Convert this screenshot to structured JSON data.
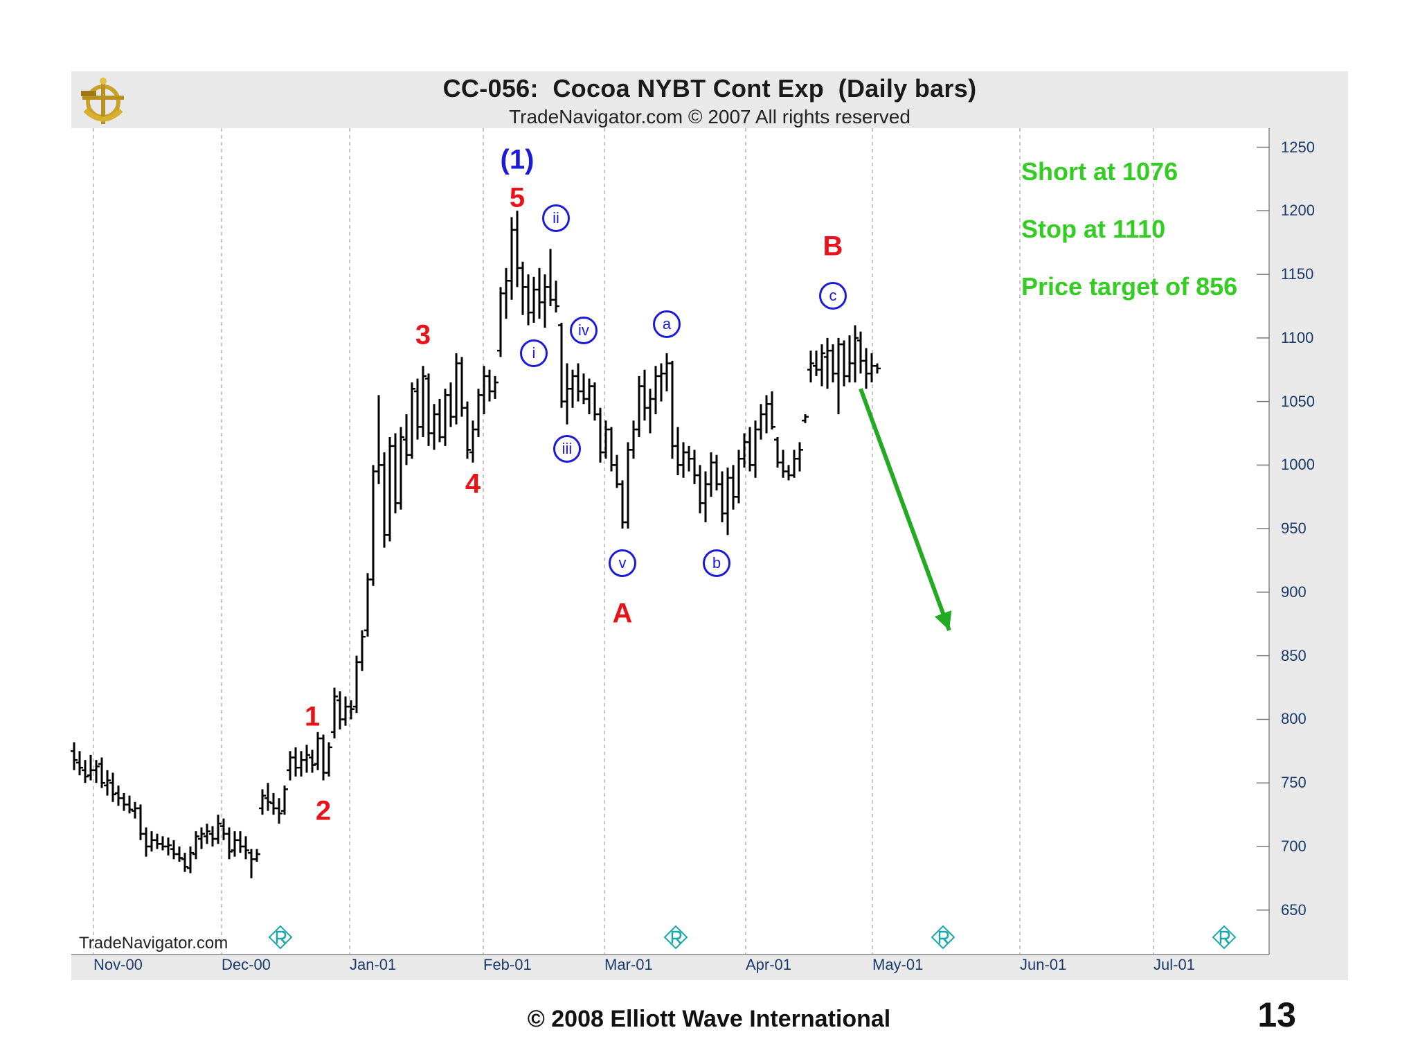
{
  "chart_title": "CC-056:  Cocoa NYBT Cont Exp  (Daily bars)",
  "chart_subtitle": "TradeNavigator.com © 2007 All rights reserved",
  "watermark_text": "TradeNavigator.com",
  "footer_copyright": "© 2008 Elliott Wave International",
  "page_number": "13",
  "trade_notes": [
    "Short at 1076",
    "Stop at 1110",
    "Price target of 856"
  ],
  "colors": {
    "panel_bg": "#e9e9e9",
    "plot_bg": "#ffffff",
    "bars": "#000000",
    "wave_red": "#e8131a",
    "wave_blue": "#1a1ad8",
    "notes_green": "#33cc22",
    "axis_text": "#1a3a6a"
  },
  "icons": {
    "logo": "anchor-ship-wheel-logo",
    "roll_marker": "diamond-r-rollover-icon"
  },
  "chart_data": {
    "type": "ohlc",
    "title": "CC-056:  Cocoa NYBT Cont Exp  (Daily bars)",
    "x_ticks": [
      "Nov-00",
      "Dec-00",
      "Jan-01",
      "Feb-01",
      "Mar-01",
      "Apr-01",
      "May-01",
      "Jun-01",
      "Jul-01"
    ],
    "y_ticks": [
      650,
      700,
      750,
      800,
      850,
      900,
      950,
      1000,
      1050,
      1100,
      1150,
      1200,
      1250
    ],
    "ylim": [
      615,
      1265
    ],
    "grid": "vertical dashed lines at month starts",
    "x_axis": "trading days from 2000-11-01",
    "wave_labels": [
      {
        "text": "1",
        "style": "red",
        "x": 43,
        "y": 802
      },
      {
        "text": "2",
        "style": "red",
        "x": 45,
        "y": 728
      },
      {
        "text": "3",
        "style": "red",
        "x": 63,
        "y": 1102
      },
      {
        "text": "4",
        "style": "red",
        "x": 72,
        "y": 985
      },
      {
        "text": "5",
        "style": "red",
        "x": 80,
        "y": 1210
      },
      {
        "text": "(1)",
        "style": "blue",
        "x": 80,
        "y": 1240
      },
      {
        "text": "i",
        "style": "circle",
        "x": 83,
        "y": 1088
      },
      {
        "text": "ii",
        "style": "circle",
        "x": 87,
        "y": 1194
      },
      {
        "text": "iii",
        "style": "circle",
        "x": 89,
        "y": 1013
      },
      {
        "text": "iv",
        "style": "circle",
        "x": 92,
        "y": 1106
      },
      {
        "text": "v",
        "style": "circle",
        "x": 99,
        "y": 923
      },
      {
        "text": "A",
        "style": "red",
        "x": 99,
        "y": 883
      },
      {
        "text": "a",
        "style": "circle",
        "x": 107,
        "y": 1111
      },
      {
        "text": "b",
        "style": "circle",
        "x": 116,
        "y": 923
      },
      {
        "text": "c",
        "style": "circle",
        "x": 137,
        "y": 1133
      },
      {
        "text": "B",
        "style": "red",
        "x": 137,
        "y": 1172
      }
    ],
    "arrow": {
      "from": {
        "x": 142,
        "y": 1060
      },
      "to": {
        "x": 158,
        "y": 870
      },
      "label": ""
    },
    "bars": [
      {
        "x": 0,
        "o": 775,
        "h": 782,
        "l": 760,
        "c": 768
      },
      {
        "x": 1,
        "o": 766,
        "h": 775,
        "l": 756,
        "c": 762
      },
      {
        "x": 2,
        "o": 760,
        "h": 768,
        "l": 750,
        "c": 755
      },
      {
        "x": 3,
        "o": 756,
        "h": 772,
        "l": 752,
        "c": 760
      },
      {
        "x": 4,
        "o": 760,
        "h": 768,
        "l": 750,
        "c": 763
      },
      {
        "x": 5,
        "o": 765,
        "h": 770,
        "l": 746,
        "c": 750
      },
      {
        "x": 6,
        "o": 748,
        "h": 760,
        "l": 740,
        "c": 752
      },
      {
        "x": 7,
        "o": 750,
        "h": 758,
        "l": 735,
        "c": 741
      },
      {
        "x": 8,
        "o": 742,
        "h": 748,
        "l": 732,
        "c": 738
      },
      {
        "x": 9,
        "o": 738,
        "h": 742,
        "l": 728,
        "c": 733
      },
      {
        "x": 10,
        "o": 733,
        "h": 740,
        "l": 726,
        "c": 729
      },
      {
        "x": 11,
        "o": 728,
        "h": 735,
        "l": 722,
        "c": 730
      },
      {
        "x": 12,
        "o": 730,
        "h": 733,
        "l": 705,
        "c": 710
      },
      {
        "x": 13,
        "o": 710,
        "h": 715,
        "l": 692,
        "c": 700
      },
      {
        "x": 14,
        "o": 700,
        "h": 712,
        "l": 696,
        "c": 705
      },
      {
        "x": 15,
        "o": 705,
        "h": 710,
        "l": 698,
        "c": 702
      },
      {
        "x": 16,
        "o": 702,
        "h": 708,
        "l": 697,
        "c": 700
      },
      {
        "x": 17,
        "o": 700,
        "h": 707,
        "l": 693,
        "c": 701
      },
      {
        "x": 18,
        "o": 698,
        "h": 705,
        "l": 690,
        "c": 694
      },
      {
        "x": 19,
        "o": 694,
        "h": 700,
        "l": 688,
        "c": 691
      },
      {
        "x": 20,
        "o": 690,
        "h": 695,
        "l": 680,
        "c": 684
      },
      {
        "x": 21,
        "o": 683,
        "h": 700,
        "l": 679,
        "c": 695
      },
      {
        "x": 22,
        "o": 694,
        "h": 712,
        "l": 690,
        "c": 708
      },
      {
        "x": 23,
        "o": 706,
        "h": 715,
        "l": 698,
        "c": 710
      },
      {
        "x": 24,
        "o": 708,
        "h": 718,
        "l": 702,
        "c": 712
      },
      {
        "x": 25,
        "o": 710,
        "h": 716,
        "l": 700,
        "c": 706
      },
      {
        "x": 26,
        "o": 706,
        "h": 725,
        "l": 702,
        "c": 718
      },
      {
        "x": 27,
        "o": 716,
        "h": 722,
        "l": 705,
        "c": 710
      },
      {
        "x": 28,
        "o": 710,
        "h": 715,
        "l": 690,
        "c": 696
      },
      {
        "x": 29,
        "o": 697,
        "h": 712,
        "l": 692,
        "c": 705
      },
      {
        "x": 30,
        "o": 705,
        "h": 712,
        "l": 695,
        "c": 700
      },
      {
        "x": 31,
        "o": 700,
        "h": 708,
        "l": 690,
        "c": 697
      },
      {
        "x": 32,
        "o": 695,
        "h": 698,
        "l": 675,
        "c": 690
      },
      {
        "x": 33,
        "o": 690,
        "h": 698,
        "l": 688,
        "c": 694
      },
      {
        "x": 34,
        "o": 730,
        "h": 745,
        "l": 725,
        "c": 740
      },
      {
        "x": 35,
        "o": 738,
        "h": 750,
        "l": 728,
        "c": 735
      },
      {
        "x": 36,
        "o": 734,
        "h": 742,
        "l": 725,
        "c": 730
      },
      {
        "x": 37,
        "o": 730,
        "h": 738,
        "l": 718,
        "c": 726
      },
      {
        "x": 38,
        "o": 728,
        "h": 748,
        "l": 725,
        "c": 745
      },
      {
        "x": 39,
        "o": 760,
        "h": 775,
        "l": 752,
        "c": 770
      },
      {
        "x": 40,
        "o": 770,
        "h": 778,
        "l": 755,
        "c": 762
      },
      {
        "x": 41,
        "o": 762,
        "h": 775,
        "l": 755,
        "c": 768
      },
      {
        "x": 42,
        "o": 768,
        "h": 780,
        "l": 758,
        "c": 772
      },
      {
        "x": 43,
        "o": 770,
        "h": 776,
        "l": 758,
        "c": 764
      },
      {
        "x": 44,
        "o": 765,
        "h": 790,
        "l": 760,
        "c": 785
      },
      {
        "x": 45,
        "o": 785,
        "h": 788,
        "l": 752,
        "c": 758
      },
      {
        "x": 46,
        "o": 758,
        "h": 782,
        "l": 755,
        "c": 778
      },
      {
        "x": 47,
        "o": 790,
        "h": 825,
        "l": 785,
        "c": 818
      },
      {
        "x": 48,
        "o": 815,
        "h": 822,
        "l": 792,
        "c": 800
      },
      {
        "x": 49,
        "o": 800,
        "h": 818,
        "l": 795,
        "c": 810
      },
      {
        "x": 50,
        "o": 810,
        "h": 815,
        "l": 800,
        "c": 808
      },
      {
        "x": 51,
        "o": 810,
        "h": 850,
        "l": 805,
        "c": 845
      },
      {
        "x": 52,
        "o": 845,
        "h": 870,
        "l": 838,
        "c": 865
      },
      {
        "x": 53,
        "o": 870,
        "h": 915,
        "l": 865,
        "c": 910
      },
      {
        "x": 54,
        "o": 910,
        "h": 1000,
        "l": 905,
        "c": 995
      },
      {
        "x": 55,
        "o": 995,
        "h": 1055,
        "l": 985,
        "c": 1000
      },
      {
        "x": 56,
        "o": 1000,
        "h": 1010,
        "l": 935,
        "c": 945
      },
      {
        "x": 57,
        "o": 945,
        "h": 1022,
        "l": 940,
        "c": 1015
      },
      {
        "x": 58,
        "o": 1015,
        "h": 1025,
        "l": 962,
        "c": 970
      },
      {
        "x": 59,
        "o": 970,
        "h": 1030,
        "l": 965,
        "c": 1022
      },
      {
        "x": 60,
        "o": 1020,
        "h": 1040,
        "l": 1000,
        "c": 1008
      },
      {
        "x": 61,
        "o": 1008,
        "h": 1065,
        "l": 1005,
        "c": 1060
      },
      {
        "x": 62,
        "o": 1058,
        "h": 1068,
        "l": 1020,
        "c": 1030
      },
      {
        "x": 63,
        "o": 1030,
        "h": 1078,
        "l": 1022,
        "c": 1070
      },
      {
        "x": 64,
        "o": 1068,
        "h": 1072,
        "l": 1015,
        "c": 1025
      },
      {
        "x": 65,
        "o": 1025,
        "h": 1048,
        "l": 1012,
        "c": 1040
      },
      {
        "x": 66,
        "o": 1040,
        "h": 1052,
        "l": 1018,
        "c": 1022
      },
      {
        "x": 67,
        "o": 1022,
        "h": 1060,
        "l": 1015,
        "c": 1055
      },
      {
        "x": 68,
        "o": 1055,
        "h": 1065,
        "l": 1030,
        "c": 1038
      },
      {
        "x": 69,
        "o": 1038,
        "h": 1088,
        "l": 1032,
        "c": 1080
      },
      {
        "x": 70,
        "o": 1080,
        "h": 1085,
        "l": 1038,
        "c": 1045
      },
      {
        "x": 71,
        "o": 1045,
        "h": 1050,
        "l": 1005,
        "c": 1012
      },
      {
        "x": 72,
        "o": 1010,
        "h": 1035,
        "l": 1002,
        "c": 1028
      },
      {
        "x": 73,
        "o": 1028,
        "h": 1060,
        "l": 1022,
        "c": 1055
      },
      {
        "x": 74,
        "o": 1055,
        "h": 1078,
        "l": 1040,
        "c": 1070
      },
      {
        "x": 75,
        "o": 1070,
        "h": 1075,
        "l": 1050,
        "c": 1058
      },
      {
        "x": 76,
        "o": 1058,
        "h": 1070,
        "l": 1052,
        "c": 1065
      },
      {
        "x": 77,
        "o": 1090,
        "h": 1140,
        "l": 1085,
        "c": 1135
      },
      {
        "x": 78,
        "o": 1135,
        "h": 1155,
        "l": 1115,
        "c": 1145
      },
      {
        "x": 79,
        "o": 1145,
        "h": 1195,
        "l": 1130,
        "c": 1185
      },
      {
        "x": 80,
        "o": 1185,
        "h": 1200,
        "l": 1140,
        "c": 1155
      },
      {
        "x": 81,
        "o": 1155,
        "h": 1160,
        "l": 1118,
        "c": 1140
      },
      {
        "x": 82,
        "o": 1140,
        "h": 1150,
        "l": 1110,
        "c": 1120
      },
      {
        "x": 83,
        "o": 1120,
        "h": 1148,
        "l": 1112,
        "c": 1138
      },
      {
        "x": 84,
        "o": 1138,
        "h": 1155,
        "l": 1115,
        "c": 1128
      },
      {
        "x": 85,
        "o": 1128,
        "h": 1150,
        "l": 1108,
        "c": 1140
      },
      {
        "x": 86,
        "o": 1140,
        "h": 1170,
        "l": 1125,
        "c": 1130
      },
      {
        "x": 87,
        "o": 1130,
        "h": 1145,
        "l": 1120,
        "c": 1125
      },
      {
        "x": 88,
        "o": 1110,
        "h": 1112,
        "l": 1045,
        "c": 1050
      },
      {
        "x": 89,
        "o": 1050,
        "h": 1080,
        "l": 1032,
        "c": 1060
      },
      {
        "x": 90,
        "o": 1060,
        "h": 1075,
        "l": 1045,
        "c": 1070
      },
      {
        "x": 91,
        "o": 1070,
        "h": 1080,
        "l": 1050,
        "c": 1058
      },
      {
        "x": 92,
        "o": 1058,
        "h": 1072,
        "l": 1048,
        "c": 1052
      },
      {
        "x": 93,
        "o": 1052,
        "h": 1068,
        "l": 1040,
        "c": 1062
      },
      {
        "x": 94,
        "o": 1062,
        "h": 1065,
        "l": 1035,
        "c": 1040
      },
      {
        "x": 95,
        "o": 1040,
        "h": 1045,
        "l": 1002,
        "c": 1010
      },
      {
        "x": 96,
        "o": 1010,
        "h": 1035,
        "l": 1005,
        "c": 1028
      },
      {
        "x": 97,
        "o": 1028,
        "h": 1030,
        "l": 995,
        "c": 1000
      },
      {
        "x": 98,
        "o": 1000,
        "h": 1008,
        "l": 982,
        "c": 985
      },
      {
        "x": 99,
        "o": 985,
        "h": 988,
        "l": 950,
        "c": 955
      },
      {
        "x": 100,
        "o": 955,
        "h": 1018,
        "l": 950,
        "c": 1012
      },
      {
        "x": 101,
        "o": 1012,
        "h": 1035,
        "l": 1005,
        "c": 1028
      },
      {
        "x": 102,
        "o": 1028,
        "h": 1070,
        "l": 1022,
        "c": 1062
      },
      {
        "x": 103,
        "o": 1062,
        "h": 1075,
        "l": 1035,
        "c": 1045
      },
      {
        "x": 104,
        "o": 1045,
        "h": 1060,
        "l": 1025,
        "c": 1052
      },
      {
        "x": 105,
        "o": 1052,
        "h": 1078,
        "l": 1040,
        "c": 1070
      },
      {
        "x": 106,
        "o": 1070,
        "h": 1080,
        "l": 1050,
        "c": 1072
      },
      {
        "x": 107,
        "o": 1072,
        "h": 1088,
        "l": 1058,
        "c": 1080
      },
      {
        "x": 108,
        "o": 1080,
        "h": 1082,
        "l": 1005,
        "c": 1015
      },
      {
        "x": 109,
        "o": 1015,
        "h": 1030,
        "l": 992,
        "c": 1000
      },
      {
        "x": 110,
        "o": 1000,
        "h": 1018,
        "l": 990,
        "c": 1010
      },
      {
        "x": 111,
        "o": 1010,
        "h": 1015,
        "l": 995,
        "c": 1005
      },
      {
        "x": 112,
        "o": 1005,
        "h": 1012,
        "l": 985,
        "c": 992
      },
      {
        "x": 113,
        "o": 992,
        "h": 1000,
        "l": 962,
        "c": 970
      },
      {
        "x": 114,
        "o": 970,
        "h": 995,
        "l": 955,
        "c": 985
      },
      {
        "x": 115,
        "o": 985,
        "h": 1010,
        "l": 975,
        "c": 1002
      },
      {
        "x": 116,
        "o": 1002,
        "h": 1008,
        "l": 980,
        "c": 985
      },
      {
        "x": 117,
        "o": 985,
        "h": 995,
        "l": 955,
        "c": 962
      },
      {
        "x": 118,
        "o": 962,
        "h": 998,
        "l": 945,
        "c": 990
      },
      {
        "x": 119,
        "o": 990,
        "h": 1000,
        "l": 965,
        "c": 975
      },
      {
        "x": 120,
        "o": 975,
        "h": 1012,
        "l": 970,
        "c": 1005
      },
      {
        "x": 121,
        "o": 1005,
        "h": 1025,
        "l": 998,
        "c": 1018
      },
      {
        "x": 122,
        "o": 1018,
        "h": 1030,
        "l": 995,
        "c": 1000
      },
      {
        "x": 123,
        "o": 1000,
        "h": 1035,
        "l": 990,
        "c": 1028
      },
      {
        "x": 124,
        "o": 1028,
        "h": 1048,
        "l": 1020,
        "c": 1040
      },
      {
        "x": 125,
        "o": 1040,
        "h": 1055,
        "l": 1025,
        "c": 1048
      },
      {
        "x": 126,
        "o": 1048,
        "h": 1058,
        "l": 1028,
        "c": 1030
      },
      {
        "x": 127,
        "o": 1020,
        "h": 1022,
        "l": 998,
        "c": 1002
      },
      {
        "x": 128,
        "o": 1002,
        "h": 1012,
        "l": 990,
        "c": 995
      },
      {
        "x": 129,
        "o": 995,
        "h": 1000,
        "l": 988,
        "c": 992
      },
      {
        "x": 130,
        "o": 992,
        "h": 1012,
        "l": 990,
        "c": 1005
      },
      {
        "x": 131,
        "o": 1005,
        "h": 1018,
        "l": 995,
        "c": 1012
      },
      {
        "x": 132,
        "o": 1035,
        "h": 1040,
        "l": 1033,
        "c": 1038
      },
      {
        "x": 133,
        "o": 1075,
        "h": 1090,
        "l": 1065,
        "c": 1080
      },
      {
        "x": 134,
        "o": 1078,
        "h": 1090,
        "l": 1070,
        "c": 1075
      },
      {
        "x": 135,
        "o": 1075,
        "h": 1095,
        "l": 1062,
        "c": 1088
      },
      {
        "x": 136,
        "o": 1085,
        "h": 1100,
        "l": 1060,
        "c": 1090
      },
      {
        "x": 137,
        "o": 1090,
        "h": 1095,
        "l": 1065,
        "c": 1072
      },
      {
        "x": 138,
        "o": 1072,
        "h": 1100,
        "l": 1040,
        "c": 1095
      },
      {
        "x": 139,
        "o": 1095,
        "h": 1098,
        "l": 1062,
        "c": 1070
      },
      {
        "x": 140,
        "o": 1070,
        "h": 1102,
        "l": 1065,
        "c": 1080
      },
      {
        "x": 141,
        "o": 1080,
        "h": 1110,
        "l": 1065,
        "c": 1100
      },
      {
        "x": 142,
        "o": 1098,
        "h": 1105,
        "l": 1072,
        "c": 1082
      },
      {
        "x": 143,
        "o": 1082,
        "h": 1092,
        "l": 1060,
        "c": 1072
      },
      {
        "x": 144,
        "o": 1072,
        "h": 1088,
        "l": 1065,
        "c": 1078
      },
      {
        "x": 145,
        "o": 1078,
        "h": 1080,
        "l": 1072,
        "c": 1076
      }
    ]
  }
}
